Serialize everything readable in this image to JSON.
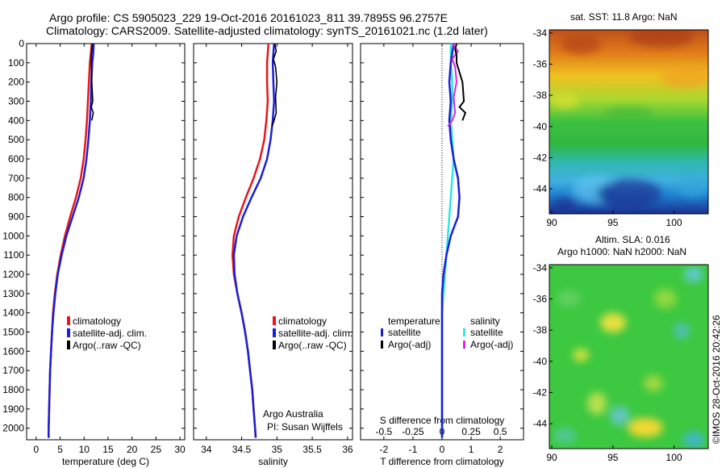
{
  "header": {
    "line1": "Argo profile: CS 5905023_229 19-Oct-2016 20161023_811 39.7895S 96.2757E",
    "line2": "Climatology: CARS2009. Satellite-adjusted climatology: synTS_20161021.nc (1.2d later)"
  },
  "credit": {
    "institution": "Argo Australia",
    "pi": "PI: Susan Wijffels",
    "stamp": "©IMOS 28-Oct-2016 20:42:26"
  },
  "colors": {
    "climatology": "#e8161c",
    "satellite": "#1a1fd6",
    "argo": "#000000",
    "sat_salinity": "#2ee6e6",
    "argo_salinity": "#e020e0"
  },
  "chart_data": [
    {
      "type": "line",
      "id": "temperature",
      "xlabel": "temperature (deg C)",
      "ylabel": "",
      "xlim": [
        -2,
        31
      ],
      "ylim": [
        2060,
        0
      ],
      "xticks": [
        0,
        5,
        10,
        15,
        20,
        25,
        30
      ],
      "yticks": [
        0,
        100,
        200,
        300,
        400,
        500,
        600,
        700,
        800,
        900,
        1000,
        1100,
        1200,
        1300,
        1400,
        1500,
        1600,
        1700,
        1800,
        1900,
        2000
      ],
      "legend": [
        "climatology",
        "satellite-adj. clim.",
        "Argo(..raw -QC)"
      ],
      "legend_position": "lower-right",
      "series": [
        {
          "name": "climatology",
          "points": [
            [
              11.6,
              0
            ],
            [
              11.4,
              50
            ],
            [
              11.2,
              100
            ],
            [
              11.0,
              200
            ],
            [
              10.8,
              300
            ],
            [
              10.6,
              400
            ],
            [
              10.3,
              500
            ],
            [
              9.9,
              600
            ],
            [
              9.3,
              700
            ],
            [
              8.3,
              800
            ],
            [
              7.1,
              900
            ],
            [
              6.0,
              1000
            ],
            [
              5.1,
              1100
            ],
            [
              4.4,
              1200
            ],
            [
              3.9,
              1300
            ],
            [
              3.5,
              1400
            ],
            [
              3.3,
              1500
            ],
            [
              3.1,
              1600
            ],
            [
              2.9,
              1700
            ],
            [
              2.8,
              1800
            ],
            [
              2.7,
              1900
            ],
            [
              2.6,
              2000
            ],
            [
              2.6,
              2050
            ]
          ]
        },
        {
          "name": "satellite-adj. clim.",
          "points": [
            [
              12.0,
              0
            ],
            [
              11.9,
              50
            ],
            [
              11.7,
              100
            ],
            [
              11.5,
              200
            ],
            [
              11.4,
              300
            ],
            [
              11.2,
              400
            ],
            [
              10.9,
              500
            ],
            [
              10.5,
              600
            ],
            [
              9.9,
              700
            ],
            [
              8.9,
              800
            ],
            [
              7.6,
              900
            ],
            [
              6.3,
              1000
            ],
            [
              5.3,
              1100
            ],
            [
              4.5,
              1200
            ],
            [
              4.0,
              1300
            ],
            [
              3.6,
              1400
            ],
            [
              3.3,
              1500
            ],
            [
              3.1,
              1600
            ],
            [
              2.9,
              1700
            ],
            [
              2.8,
              1800
            ],
            [
              2.7,
              1900
            ],
            [
              2.6,
              2000
            ],
            [
              2.6,
              2050
            ]
          ]
        },
        {
          "name": "Argo(..raw -QC)",
          "points": [
            [
              11.7,
              0
            ],
            [
              11.6,
              30
            ],
            [
              11.5,
              60
            ],
            [
              11.5,
              100
            ],
            [
              11.6,
              200
            ],
            [
              11.8,
              300
            ],
            [
              11.5,
              330
            ],
            [
              11.9,
              360
            ],
            [
              11.6,
              400
            ]
          ]
        }
      ]
    },
    {
      "type": "line",
      "id": "salinity",
      "xlabel": "salinity",
      "ylabel": "",
      "xlim": [
        33.82,
        36.07
      ],
      "ylim": [
        2060,
        0
      ],
      "xticks": [
        34,
        34.5,
        35,
        35.5,
        36
      ],
      "xticklabels": [
        "34",
        "34.5",
        "35",
        "35.5",
        "36"
      ],
      "legend": [
        "climatology",
        "satellite-adj. clim.",
        "Argo(..raw -QC)"
      ],
      "legend_position": "lower-right",
      "series": [
        {
          "name": "climatology",
          "points": [
            [
              34.88,
              0
            ],
            [
              34.87,
              50
            ],
            [
              34.86,
              100
            ],
            [
              34.86,
              200
            ],
            [
              34.87,
              300
            ],
            [
              34.85,
              400
            ],
            [
              34.82,
              500
            ],
            [
              34.76,
              600
            ],
            [
              34.67,
              700
            ],
            [
              34.56,
              800
            ],
            [
              34.46,
              900
            ],
            [
              34.39,
              1000
            ],
            [
              34.37,
              1100
            ],
            [
              34.39,
              1200
            ],
            [
              34.44,
              1300
            ],
            [
              34.5,
              1400
            ],
            [
              34.55,
              1500
            ],
            [
              34.59,
              1600
            ],
            [
              34.62,
              1700
            ],
            [
              34.65,
              1800
            ],
            [
              34.67,
              1900
            ],
            [
              34.69,
              2000
            ],
            [
              34.7,
              2050
            ]
          ]
        },
        {
          "name": "satellite-adj. clim.",
          "points": [
            [
              34.96,
              0
            ],
            [
              34.95,
              50
            ],
            [
              34.94,
              100
            ],
            [
              34.95,
              200
            ],
            [
              34.96,
              300
            ],
            [
              34.94,
              400
            ],
            [
              34.91,
              500
            ],
            [
              34.86,
              600
            ],
            [
              34.77,
              700
            ],
            [
              34.64,
              800
            ],
            [
              34.52,
              900
            ],
            [
              34.43,
              1000
            ],
            [
              34.39,
              1100
            ],
            [
              34.4,
              1200
            ],
            [
              34.44,
              1300
            ],
            [
              34.5,
              1400
            ],
            [
              34.55,
              1500
            ],
            [
              34.59,
              1600
            ],
            [
              34.62,
              1700
            ],
            [
              34.65,
              1800
            ],
            [
              34.67,
              1900
            ],
            [
              34.69,
              2000
            ],
            [
              34.7,
              2050
            ]
          ]
        },
        {
          "name": "Argo(..raw -QC)",
          "points": [
            [
              34.97,
              0
            ],
            [
              34.99,
              40
            ],
            [
              34.95,
              80
            ],
            [
              34.98,
              120
            ],
            [
              35.0,
              200
            ],
            [
              34.98,
              280
            ],
            [
              34.99,
              360
            ],
            [
              34.96,
              400
            ],
            [
              34.93,
              430
            ]
          ]
        }
      ]
    },
    {
      "type": "line",
      "id": "difference",
      "xlabel": "T difference from climatology",
      "xlabel_top": "S difference from climatology",
      "xlim": [
        -2.8,
        2.8
      ],
      "ylim": [
        2060,
        0
      ],
      "xticks": [
        -2,
        -1,
        0,
        1,
        2
      ],
      "xticklabels": [
        "-2",
        "-1",
        "0",
        "1",
        "2"
      ],
      "top_ticks": [
        -2,
        -1,
        0,
        1,
        2
      ],
      "top_ticklabels": [
        "-0.5",
        "-0.25",
        "0",
        "0.25",
        "0.5"
      ],
      "legend_groups": [
        "temperature",
        "salinity"
      ],
      "legend": [
        "satellite",
        "Argo(-adj)",
        "satellite",
        "Argo(-adj)"
      ],
      "legend_position": "lower",
      "series": [
        {
          "name": "satellite",
          "group": "temperature",
          "points": [
            [
              0.4,
              0
            ],
            [
              0.35,
              50
            ],
            [
              0.3,
              100
            ],
            [
              0.25,
              200
            ],
            [
              0.3,
              300
            ],
            [
              0.25,
              400
            ],
            [
              0.3,
              500
            ],
            [
              0.4,
              600
            ],
            [
              0.55,
              700
            ],
            [
              0.6,
              800
            ],
            [
              0.55,
              900
            ],
            [
              0.3,
              1000
            ],
            [
              0.15,
              1100
            ],
            [
              0.05,
              1200
            ],
            [
              0,
              1300
            ],
            [
              0,
              2050
            ]
          ]
        },
        {
          "name": "satellite",
          "group": "salinity",
          "points": [
            [
              0.3,
              0
            ],
            [
              0.3,
              50
            ],
            [
              0.3,
              100
            ],
            [
              0.35,
              200
            ],
            [
              0.35,
              300
            ],
            [
              0.3,
              400
            ],
            [
              0.35,
              500
            ],
            [
              0.4,
              600
            ],
            [
              0.35,
              700
            ],
            [
              0.3,
              800
            ],
            [
              0.25,
              900
            ],
            [
              0.2,
              1000
            ],
            [
              0.15,
              1100
            ],
            [
              0.1,
              1200
            ],
            [
              0.05,
              1300
            ],
            [
              0,
              1400
            ],
            [
              0,
              2050
            ]
          ]
        },
        {
          "name": "Argo(-adj)",
          "group": "temperature",
          "points": [
            [
              0.5,
              0
            ],
            [
              0.45,
              30
            ],
            [
              0.5,
              60
            ],
            [
              0.5,
              100
            ],
            [
              0.7,
              200
            ],
            [
              0.75,
              300
            ],
            [
              0.6,
              330
            ],
            [
              0.8,
              360
            ],
            [
              0.7,
              400
            ]
          ]
        },
        {
          "name": "Argo(-adj)",
          "group": "salinity",
          "points": [
            [
              0.35,
              0
            ],
            [
              0.55,
              40
            ],
            [
              0.35,
              80
            ],
            [
              0.45,
              120
            ],
            [
              0.5,
              200
            ],
            [
              0.4,
              280
            ],
            [
              0.45,
              360
            ],
            [
              0.35,
              400
            ],
            [
              0.2,
              430
            ]
          ]
        }
      ]
    },
    {
      "type": "heatmap",
      "id": "sst-map",
      "title": "sat. SST: 11.8 Argo: NaN",
      "xlim": [
        89.8,
        102.8
      ],
      "ylim": [
        -45.6,
        -33.8
      ],
      "xticks": [
        90,
        95,
        100
      ],
      "yticks": [
        -34,
        -36,
        -38,
        -40,
        -42,
        -44
      ],
      "description": "warm orange/red in north, grading through yellow, green to light and dark blue in the south"
    },
    {
      "type": "heatmap",
      "id": "sla-map",
      "title": "Altim. SLA: 0.016",
      "subtitle": "Argo h1000: NaN h2000: NaN",
      "xlim": [
        89.8,
        102.8
      ],
      "ylim": [
        -45.6,
        -33.8
      ],
      "xticks": [
        90,
        95,
        100
      ],
      "yticks": [
        -34,
        -36,
        -38,
        -40,
        -42,
        -44
      ],
      "description": "mostly green with scattered yellow and cyan eddies"
    }
  ]
}
